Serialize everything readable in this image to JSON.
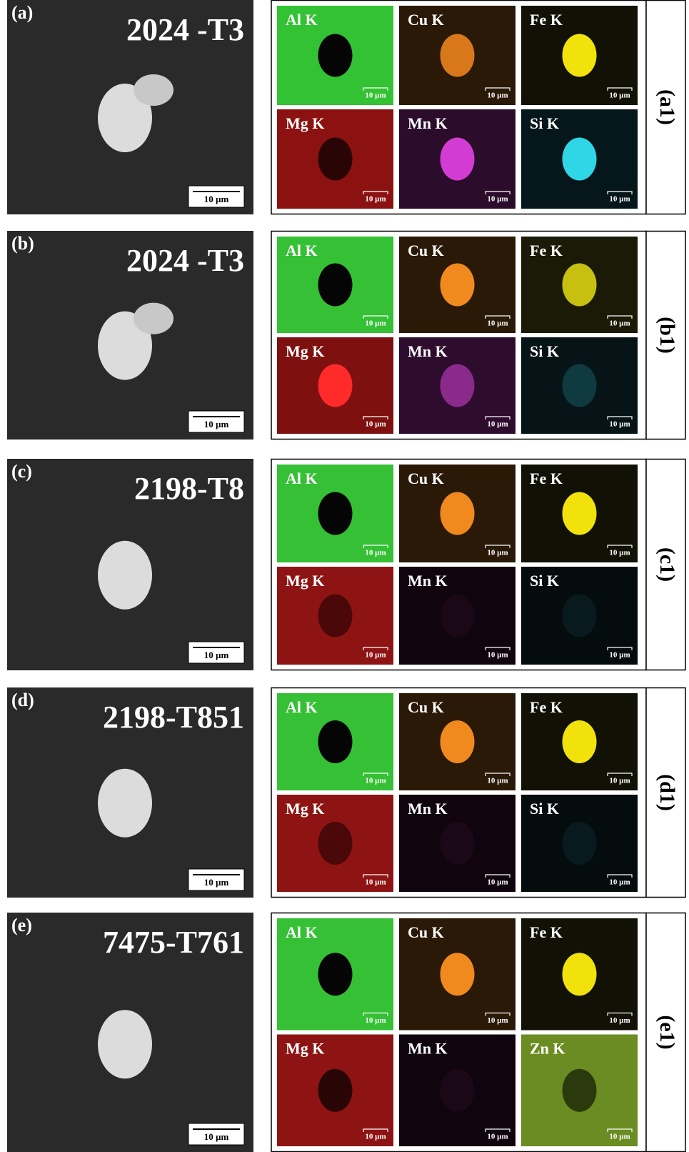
{
  "panels": [
    {
      "label": "(a)",
      "title": "2024 -T3",
      "scale_bar": "10 µm",
      "map_label": "(a1)",
      "maps": [
        {
          "element": "Al K",
          "scale_bar": "10 µm",
          "background": "#33c233",
          "blob": "#050505"
        },
        {
          "element": "Cu K",
          "scale_bar": "10 µm",
          "background": "#2a1906",
          "blob": "#d9781a"
        },
        {
          "element": "Fe K",
          "scale_bar": "10 µm",
          "background": "#111105",
          "blob": "#f2e20c"
        },
        {
          "element": "Mg K",
          "scale_bar": "10 µm",
          "background": "#8c1212",
          "blob": "#2a0505"
        },
        {
          "element": "Mn K",
          "scale_bar": "10 µm",
          "background": "#2b0c2b",
          "blob": "#d23cd2"
        },
        {
          "element": "Si K",
          "scale_bar": "10 µm",
          "background": "#06171b",
          "blob": "#2fd6e6"
        }
      ]
    },
    {
      "label": "(b)",
      "title": "2024 -T3",
      "scale_bar": "10 µm",
      "map_label": "(b1)",
      "maps": [
        {
          "element": "Al K",
          "scale_bar": "10 µm",
          "background": "#35c035",
          "blob": "#050505"
        },
        {
          "element": "Cu K",
          "scale_bar": "10 µm",
          "background": "#2a1906",
          "blob": "#f08a1e"
        },
        {
          "element": "Fe K",
          "scale_bar": "10 µm",
          "background": "#1a1a06",
          "blob": "#c8c010"
        },
        {
          "element": "Mg K",
          "scale_bar": "10 µm",
          "background": "#7e1010",
          "blob": "#ff2a2a"
        },
        {
          "element": "Mn K",
          "scale_bar": "10 µm",
          "background": "#2e0c2e",
          "blob": "#8a2a8a"
        },
        {
          "element": "Si K",
          "scale_bar": "10 µm",
          "background": "#061418",
          "blob": "#0e3a40"
        }
      ]
    },
    {
      "label": "(c)",
      "title": "2198-T8",
      "scale_bar": "10 µm",
      "map_label": "(c1)",
      "maps": [
        {
          "element": "Al K",
          "scale_bar": "10 µm",
          "background": "#35c035",
          "blob": "#050505"
        },
        {
          "element": "Cu K",
          "scale_bar": "10 µm",
          "background": "#2a1906",
          "blob": "#f08a1e"
        },
        {
          "element": "Fe K",
          "scale_bar": "10 µm",
          "background": "#111105",
          "blob": "#f2e20c"
        },
        {
          "element": "Mg K",
          "scale_bar": "10 µm",
          "background": "#8e1414",
          "blob": "#4a0808"
        },
        {
          "element": "Mn K",
          "scale_bar": "10 µm",
          "background": "#10040f",
          "blob": "#1a0818"
        },
        {
          "element": "Si K",
          "scale_bar": "10 µm",
          "background": "#040c0e",
          "blob": "#081a1e"
        }
      ]
    },
    {
      "label": "(d)",
      "title": "2198-T851",
      "scale_bar": "10 µm",
      "map_label": "(d1)",
      "maps": [
        {
          "element": "Al K",
          "scale_bar": "10 µm",
          "background": "#35c035",
          "blob": "#050505"
        },
        {
          "element": "Cu K",
          "scale_bar": "10 µm",
          "background": "#2a1906",
          "blob": "#f08a1e"
        },
        {
          "element": "Fe K",
          "scale_bar": "10 µm",
          "background": "#111105",
          "blob": "#f2e20c"
        },
        {
          "element": "Mg K",
          "scale_bar": "10 µm",
          "background": "#8e1414",
          "blob": "#4a0808"
        },
        {
          "element": "Mn K",
          "scale_bar": "10 µm",
          "background": "#10040f",
          "blob": "#1a0818"
        },
        {
          "element": "Si K",
          "scale_bar": "10 µm",
          "background": "#040c0e",
          "blob": "#081a1e"
        }
      ]
    },
    {
      "label": "(e)",
      "title": "7475-T761",
      "scale_bar": "10 µm",
      "map_label": "(e1)",
      "maps": [
        {
          "element": "Al K",
          "scale_bar": "10 µm",
          "background": "#35c035",
          "blob": "#050505"
        },
        {
          "element": "Cu K",
          "scale_bar": "10 µm",
          "background": "#2a1906",
          "blob": "#f08a1e"
        },
        {
          "element": "Fe K",
          "scale_bar": "10 µm",
          "background": "#111105",
          "blob": "#f2e20c"
        },
        {
          "element": "Mg K",
          "scale_bar": "10 µm",
          "background": "#8e1414",
          "blob": "#2a0505"
        },
        {
          "element": "Mn K",
          "scale_bar": "10 µm",
          "background": "#10040f",
          "blob": "#1a0818"
        },
        {
          "element": "Zn K",
          "scale_bar": "10 µm",
          "background": "#6a8c22",
          "blob": "#2a3a0c"
        }
      ]
    }
  ]
}
